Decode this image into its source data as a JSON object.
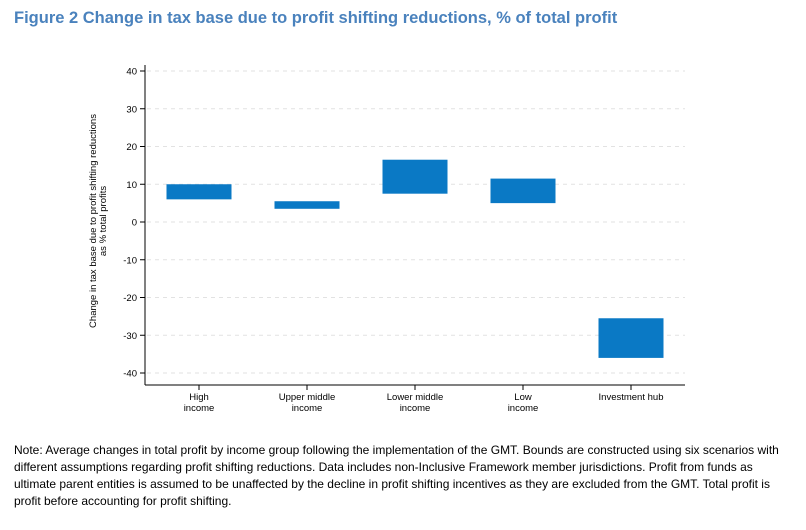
{
  "title": "Figure 2 Change in tax base due to profit shifting reductions, % of total profit",
  "note": "Note: Average changes in total profit by income group following the implementation of the GMT. Bounds are constructed using six scenarios with different assumptions regarding profit shifting reductions. Data includes non-Inclusive Framework member jurisdictions. Profit from funds as ultimate parent entities is assumed to be unaffected by the decline in profit shifting incentives as they are excluded from the GMT. Total profit is profit before accounting for profit shifting.",
  "colors": {
    "bar": "#0a79c5",
    "title": "#4a82bd",
    "grid": "#e2e2e2"
  },
  "chart_data": {
    "type": "bar",
    "subtype": "floating-range",
    "title": "Figure 2 Change in tax base due to profit shifting reductions, % of total profit",
    "ylabel_lines": [
      "Change in tax base due to profit shifting reductions",
      "as % total profits"
    ],
    "xlabel": "",
    "ylim": [
      -40,
      40
    ],
    "yticks": [
      40,
      30,
      20,
      10,
      0,
      -10,
      -20,
      -30,
      -40
    ],
    "grid": true,
    "categories": [
      {
        "lines": [
          "High",
          "income"
        ]
      },
      {
        "lines": [
          "Upper middle",
          "income"
        ]
      },
      {
        "lines": [
          "Lower middle",
          "income"
        ]
      },
      {
        "lines": [
          "Low",
          "income"
        ]
      },
      {
        "lines": [
          "Investment hub"
        ]
      }
    ],
    "ranges": [
      [
        6,
        10
      ],
      [
        3.5,
        5.5
      ],
      [
        7.5,
        16.5
      ],
      [
        5,
        11.5
      ],
      [
        -36,
        -25.5
      ]
    ]
  }
}
